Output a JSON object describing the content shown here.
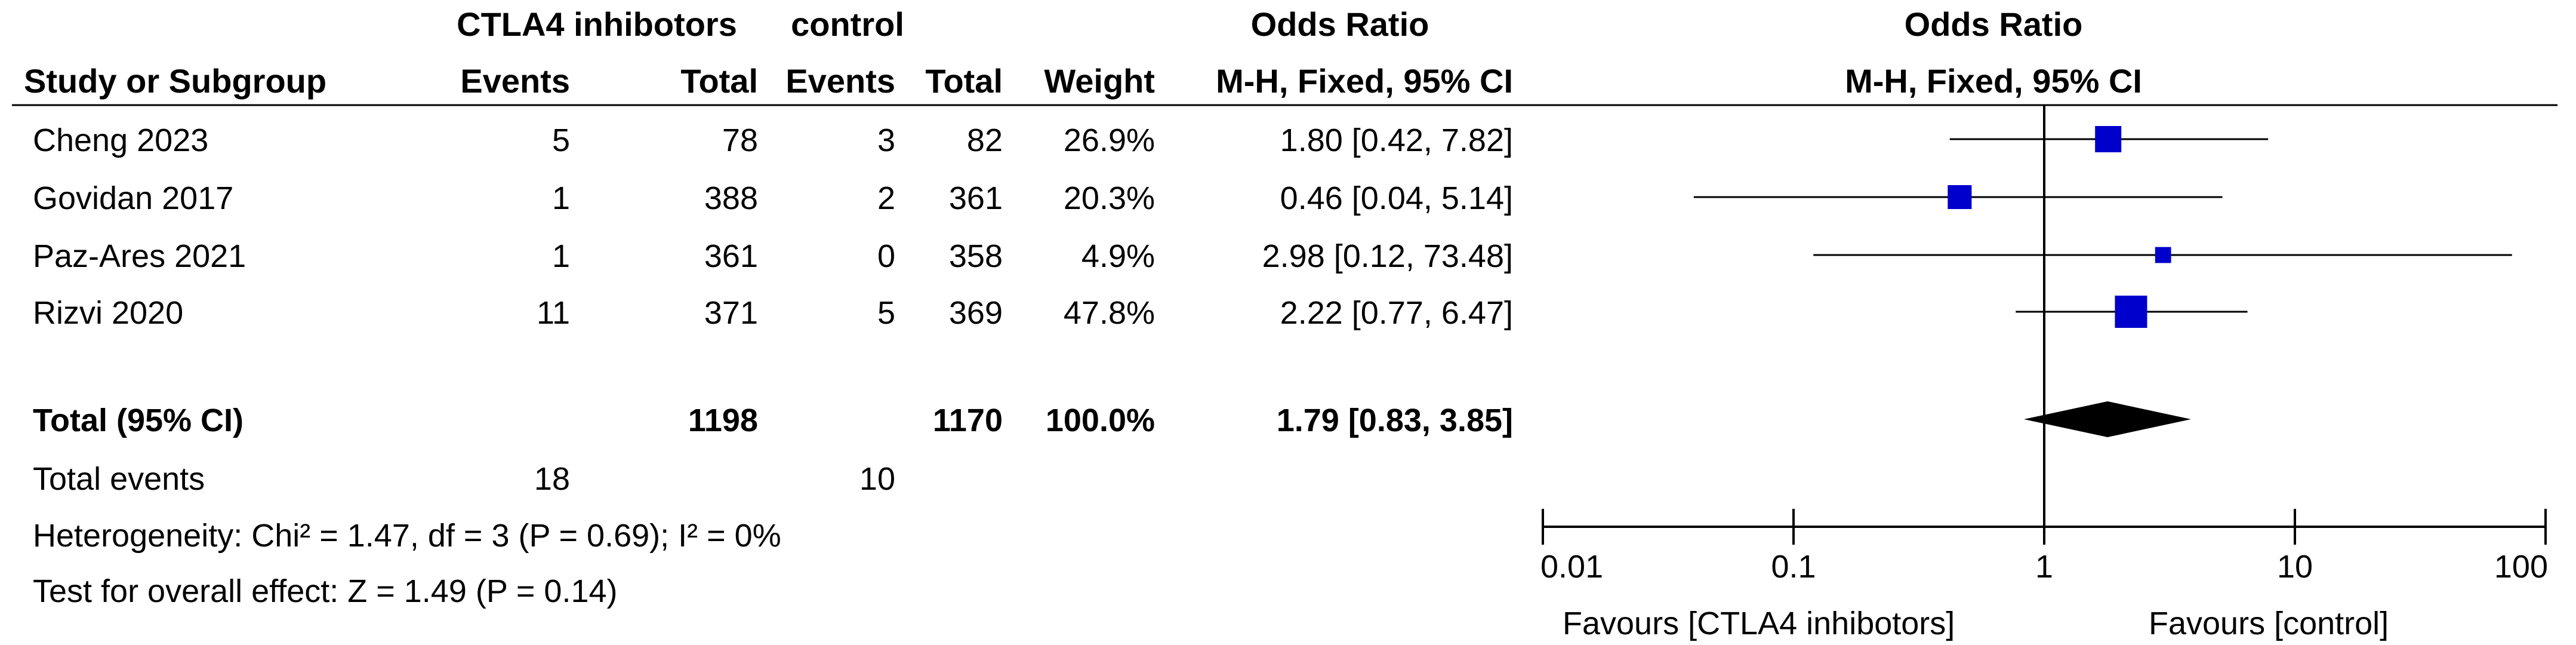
{
  "headers": {
    "group1": "CTLA4 inhibotors",
    "group2": "control",
    "or_left": "Odds Ratio",
    "or_right": "Odds Ratio",
    "study_col": "Study or Subgroup",
    "events1": "Events",
    "total1": "Total",
    "events2": "Events",
    "total2": "Total",
    "weight": "Weight",
    "method_left": "M-H, Fixed, 95% CI",
    "method_right": "M-H, Fixed, 95% CI"
  },
  "studies": [
    {
      "name": "Cheng 2023",
      "e1": "5",
      "t1": "78",
      "e2": "3",
      "t2": "82",
      "weight": "26.9%",
      "ci_text": "1.80 [0.42, 7.82]"
    },
    {
      "name": "Govidan 2017",
      "e1": "1",
      "t1": "388",
      "e2": "2",
      "t2": "361",
      "weight": "20.3%",
      "ci_text": "0.46 [0.04, 5.14]"
    },
    {
      "name": "Paz-Ares 2021",
      "e1": "1",
      "t1": "361",
      "e2": "0",
      "t2": "358",
      "weight": "4.9%",
      "ci_text": "2.98 [0.12, 73.48]"
    },
    {
      "name": "Rizvi 2020",
      "e1": "11",
      "t1": "371",
      "e2": "5",
      "t2": "369",
      "weight": "47.8%",
      "ci_text": "2.22 [0.77, 6.47]"
    }
  ],
  "total": {
    "label": "Total (95% CI)",
    "t1": "1198",
    "t2": "1170",
    "weight": "100.0%",
    "ci_text": "1.79 [0.83, 3.85]"
  },
  "total_events": {
    "label": "Total events",
    "e1": "18",
    "e2": "10"
  },
  "heterogeneity": "Heterogeneity: Chi² = 1.47, df = 3 (P = 0.69); I² = 0%",
  "overall_effect": "Test for overall effect: Z = 1.49 (P = 0.14)",
  "axis": {
    "ticks": [
      "0.01",
      "0.1",
      "1",
      "10",
      "100"
    ],
    "favours_left": "Favours [CTLA4 inhibotors]",
    "favours_right": "Favours [control]"
  },
  "colors": {
    "marker": "#0000cc",
    "diamond": "#000000",
    "line": "#000000"
  },
  "chart_data": {
    "type": "forest",
    "scale": "log",
    "xlim": [
      0.01,
      100
    ],
    "reference_line": 1,
    "points": [
      {
        "study": "Cheng 2023",
        "or": 1.8,
        "lower": 0.42,
        "upper": 7.82,
        "weight": 26.9
      },
      {
        "study": "Govidan 2017",
        "or": 0.46,
        "lower": 0.04,
        "upper": 5.14,
        "weight": 20.3
      },
      {
        "study": "Paz-Ares 2021",
        "or": 2.98,
        "lower": 0.12,
        "upper": 73.48,
        "weight": 4.9
      },
      {
        "study": "Rizvi 2020",
        "or": 2.22,
        "lower": 0.77,
        "upper": 6.47,
        "weight": 47.8
      }
    ],
    "pooled": {
      "or": 1.79,
      "lower": 0.83,
      "upper": 3.85
    }
  }
}
